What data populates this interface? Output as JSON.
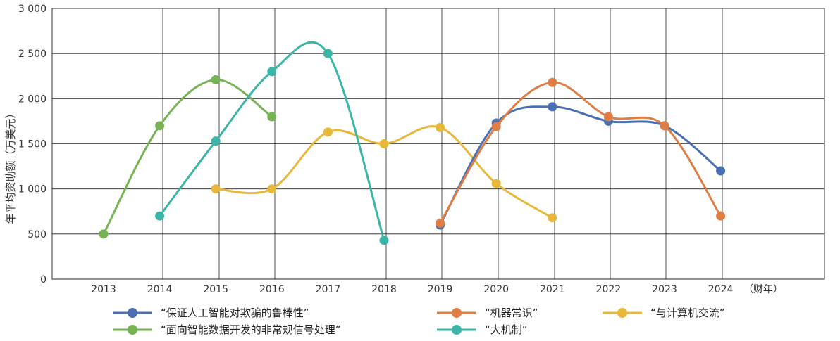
{
  "chart_data": {
    "type": "line",
    "ylabel": "年平均资助额（万美元）",
    "x_unit_label": "（财年）",
    "x": [
      2013,
      2014,
      2015,
      2016,
      2017,
      2018,
      2019,
      2020,
      2021,
      2022,
      2023,
      2024
    ],
    "x_tick_labels": [
      "2013",
      "2014",
      "2015",
      "2016",
      "2017",
      "2018",
      "2019",
      "2020",
      "2021",
      "2022",
      "2023",
      "2024"
    ],
    "ylim": [
      0,
      3000
    ],
    "y_ticks": [
      0,
      500,
      1000,
      1500,
      2000,
      2500,
      3000
    ],
    "y_tick_labels": [
      "0",
      "500",
      "1 000",
      "1 500",
      "2 000",
      "2 500",
      "3 000"
    ],
    "grid": true,
    "legend_position": "bottom",
    "series": [
      {
        "name": "“保证人工智能对欺骗的鲁棒性”",
        "color": "#4a6fb3",
        "points": [
          [
            2019,
            600
          ],
          [
            2020,
            1730
          ],
          [
            2021,
            1910
          ],
          [
            2022,
            1750
          ],
          [
            2023,
            1700
          ],
          [
            2024,
            1200
          ]
        ]
      },
      {
        "name": "“机器常识”",
        "color": "#e07d44",
        "points": [
          [
            2019,
            620
          ],
          [
            2020,
            1690
          ],
          [
            2021,
            2180
          ],
          [
            2022,
            1800
          ],
          [
            2023,
            1700
          ],
          [
            2024,
            700
          ]
        ]
      },
      {
        "name": "“与计算机交流”",
        "color": "#e8b83c",
        "points": [
          [
            2015,
            1000
          ],
          [
            2016,
            1000
          ],
          [
            2017,
            1630
          ],
          [
            2018,
            1500
          ],
          [
            2019,
            1680
          ],
          [
            2020,
            1060
          ],
          [
            2021,
            680
          ]
        ]
      },
      {
        "name": "“面向智能数据开发的非常规信号处理”",
        "color": "#76b354",
        "points": [
          [
            2013,
            500
          ],
          [
            2014,
            1700
          ],
          [
            2015,
            2210
          ],
          [
            2016,
            1800
          ]
        ]
      },
      {
        "name": "“大机制”",
        "color": "#3bb5a8",
        "points": [
          [
            2014,
            700
          ],
          [
            2015,
            1530
          ],
          [
            2016,
            2300
          ],
          [
            2017,
            2500
          ],
          [
            2018,
            430
          ]
        ]
      }
    ]
  }
}
